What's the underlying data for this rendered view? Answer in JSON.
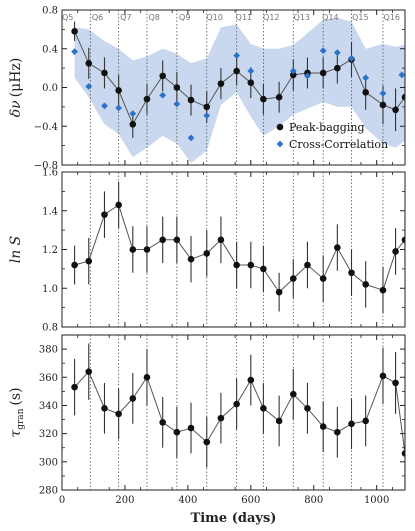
{
  "chart_data": {
    "xlabel": "Time (days)",
    "xlim": [
      0,
      1090
    ],
    "xticks": [
      0,
      200,
      400,
      600,
      800,
      1000
    ],
    "quarter_boundaries": [
      90,
      180,
      270,
      365,
      460,
      555,
      640,
      735,
      830,
      920,
      1020
    ],
    "quarter_labels": [
      {
        "label": "Q5",
        "x": 18
      },
      {
        "label": "Q6",
        "x": 113
      },
      {
        "label": "Q7",
        "x": 203
      },
      {
        "label": "Q8",
        "x": 293
      },
      {
        "label": "Q9",
        "x": 390
      },
      {
        "label": "Q10",
        "x": 485
      },
      {
        "label": "Q11",
        "x": 578
      },
      {
        "label": "Q12",
        "x": 665
      },
      {
        "label": "Q13",
        "x": 762
      },
      {
        "label": "Q14",
        "x": 853
      },
      {
        "label": "Q15",
        "x": 948
      },
      {
        "label": "Q16",
        "x": 1048
      }
    ],
    "panels": [
      {
        "id": "freq",
        "type": "line",
        "ylabel_main": "δν",
        "ylabel_unit": "(μHz)",
        "ylim": [
          -0.8,
          0.8
        ],
        "yticks": [
          -0.8,
          -0.4,
          0.0,
          0.4,
          0.8
        ],
        "ytick_labels": [
          "−0.8",
          "−0.4",
          "0.0",
          "0.4",
          "0.8"
        ],
        "band": {
          "color": "#c9d8ee",
          "x": [
            40,
            85,
            135,
            180,
            225,
            270,
            320,
            365,
            410,
            460,
            505,
            555,
            600,
            640,
            690,
            735,
            780,
            830,
            875,
            920,
            965,
            1020,
            1060,
            1090
          ],
          "upper": [
            0.62,
            0.6,
            0.48,
            0.4,
            0.28,
            0.32,
            0.4,
            0.35,
            0.25,
            0.3,
            0.62,
            0.65,
            0.45,
            0.4,
            0.4,
            0.44,
            0.56,
            0.7,
            0.72,
            0.68,
            0.4,
            0.45,
            0.42,
            0.44
          ],
          "lower": [
            0.1,
            -0.1,
            -0.38,
            -0.48,
            -0.72,
            -0.62,
            -0.5,
            -0.58,
            -0.78,
            -0.65,
            -0.18,
            -0.05,
            -0.3,
            -0.5,
            -0.4,
            -0.28,
            -0.22,
            -0.15,
            -0.2,
            -0.2,
            -0.42,
            -0.58,
            -0.62,
            -0.55
          ]
        },
        "series": [
          {
            "name": "Peak-bagging",
            "marker": "circle",
            "color": "#111111",
            "x": [
              40,
              85,
              135,
              180,
              225,
              270,
              320,
              365,
              410,
              460,
              505,
              555,
              600,
              640,
              690,
              735,
              780,
              830,
              875,
              920,
              965,
              1020,
              1060,
              1090
            ],
            "y": [
              0.58,
              0.25,
              0.15,
              -0.03,
              -0.38,
              -0.12,
              0.12,
              0.0,
              -0.13,
              -0.2,
              0.04,
              0.17,
              0.05,
              -0.12,
              -0.1,
              0.13,
              0.15,
              0.15,
              0.2,
              0.29,
              -0.05,
              -0.18,
              -0.23,
              -0.1
            ],
            "yerr": [
              0.1,
              0.16,
              0.16,
              0.16,
              0.14,
              0.16,
              0.16,
              0.16,
              0.16,
              0.16,
              0.16,
              0.15,
              0.16,
              0.16,
              0.16,
              0.16,
              0.16,
              0.16,
              0.16,
              0.18,
              0.18,
              0.2,
              0.22,
              0.2
            ]
          },
          {
            "name": "Cross-Correlation",
            "marker": "diamond",
            "color": "#2a73c8",
            "x": [
              40,
              85,
              135,
              180,
              225,
              320,
              365,
              410,
              460,
              555,
              600,
              735,
              780,
              830,
              875,
              920,
              965,
              1020,
              1080
            ],
            "y": [
              0.37,
              0.01,
              -0.19,
              -0.21,
              -0.27,
              -0.08,
              -0.17,
              -0.52,
              -0.29,
              0.33,
              0.17,
              0.17,
              0.12,
              0.38,
              0.36,
              0.3,
              0.1,
              -0.06,
              0.13
            ]
          }
        ],
        "legend": "lower-right"
      },
      {
        "id": "lnS",
        "type": "line",
        "ylabel_main": "ln S",
        "ylim": [
          0.8,
          1.6
        ],
        "yticks": [
          0.8,
          1.0,
          1.2,
          1.4,
          1.6
        ],
        "ytick_labels": [
          "0.8",
          "1.0",
          "1.2",
          "1.4",
          "1.6"
        ],
        "series": [
          {
            "name": "",
            "marker": "circle",
            "color": "#111111",
            "x": [
              40,
              85,
              135,
              180,
              225,
              270,
              320,
              365,
              410,
              460,
              505,
              555,
              600,
              640,
              690,
              735,
              780,
              830,
              875,
              920,
              965,
              1020,
              1060,
              1090
            ],
            "y": [
              1.12,
              1.14,
              1.38,
              1.43,
              1.2,
              1.2,
              1.25,
              1.25,
              1.15,
              1.18,
              1.25,
              1.12,
              1.12,
              1.1,
              0.98,
              1.05,
              1.12,
              1.05,
              1.21,
              1.08,
              1.02,
              0.99,
              1.19,
              1.25
            ],
            "yerr": [
              0.1,
              0.12,
              0.12,
              0.12,
              0.12,
              0.12,
              0.12,
              0.12,
              0.12,
              0.12,
              0.12,
              0.12,
              0.12,
              0.12,
              0.1,
              0.1,
              0.12,
              0.12,
              0.12,
              0.12,
              0.12,
              0.12,
              0.12,
              0.12
            ]
          }
        ]
      },
      {
        "id": "tau",
        "type": "line",
        "ylabel_main": "τ",
        "ylabel_sub": "gran",
        "ylabel_unit": "(s)",
        "ylim": [
          280,
          390
        ],
        "yticks": [
          280,
          300,
          320,
          340,
          360,
          380
        ],
        "ytick_labels": [
          "280",
          "300",
          "320",
          "340",
          "360",
          "380"
        ],
        "series": [
          {
            "name": "",
            "marker": "circle",
            "color": "#111111",
            "x": [
              40,
              85,
              135,
              180,
              225,
              270,
              320,
              365,
              410,
              460,
              505,
              555,
              600,
              640,
              690,
              735,
              780,
              830,
              875,
              920,
              965,
              1020,
              1060,
              1090
            ],
            "y": [
              353,
              364,
              338,
              334,
              345,
              360,
              328,
              321,
              324,
              314,
              331,
              341,
              358,
              338,
              329,
              348,
              338,
              325,
              321,
              327,
              329,
              361,
              356,
              306
            ],
            "yerr": [
              20,
              20,
              18,
              18,
              18,
              20,
              18,
              18,
              18,
              18,
              18,
              18,
              18,
              18,
              18,
              18,
              18,
              18,
              18,
              18,
              18,
              20,
              22,
              24
            ]
          }
        ]
      }
    ]
  }
}
